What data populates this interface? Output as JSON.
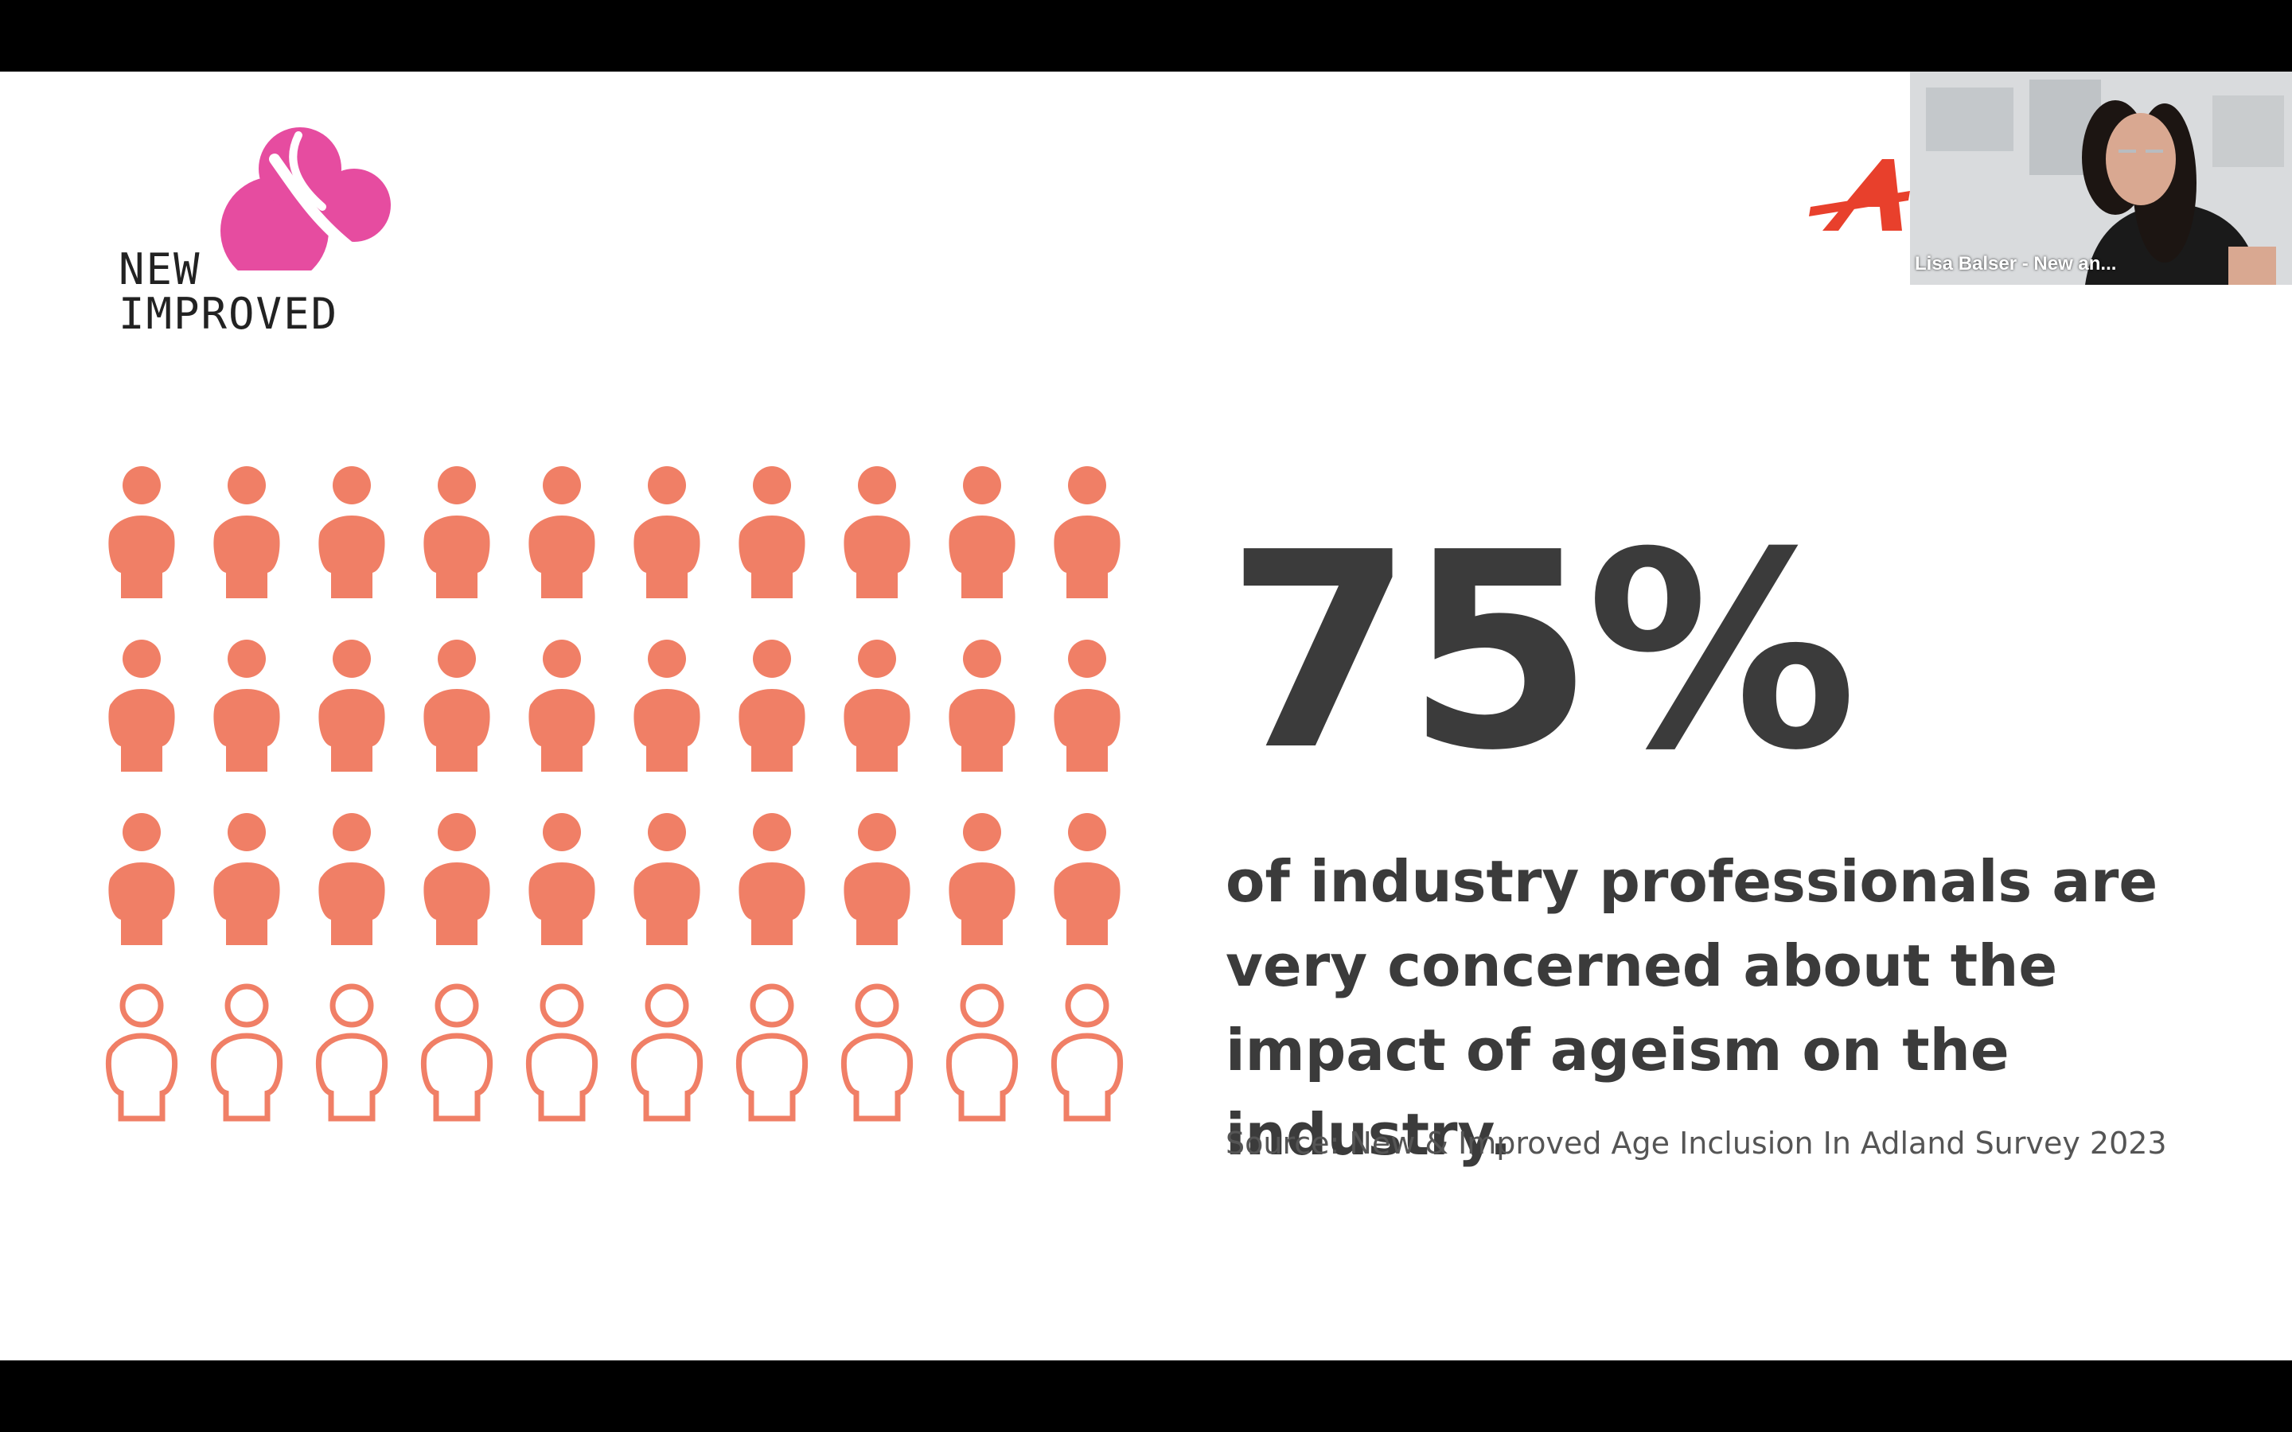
{
  "slide": {
    "logo": {
      "word_top": "NEW",
      "word_bottom": "IMPROVED",
      "ampersand_color": "#e64ca0",
      "icon": "ampersand-icon"
    },
    "partner_logo": {
      "icon": "aarp-logo-icon",
      "color": "#e8402c"
    },
    "statistic": "75%",
    "caption": "of industry professionals are very concerned about the impact of ageism on the industry.",
    "source": "Source: New & Improved Age Inclusion In Adland Survey 2023",
    "pictogram": {
      "total": 40,
      "filled": 30,
      "columns": 10,
      "color": "#f07f66",
      "icon": "person-icon"
    }
  },
  "video": {
    "participant_name": "Lisa Balser - New an..."
  },
  "colors": {
    "background": "#000000",
    "slide": "#ffffff",
    "text": "#3b3b3b"
  }
}
